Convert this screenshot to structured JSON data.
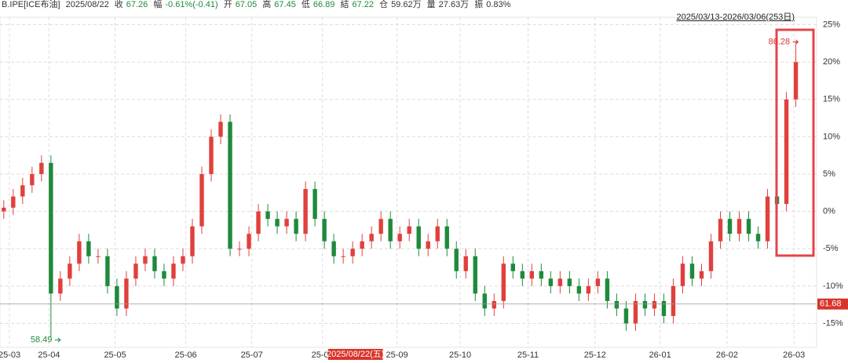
{
  "header": {
    "symbol": "B.IPE[ICE布油]",
    "date": "2025/08/22",
    "range": "2025/03/13-2026/03/06(253日)",
    "fields": [
      {
        "label": "收",
        "value": "67.26"
      },
      {
        "label": "幅",
        "value": "-0.61%(-0.41)"
      },
      {
        "label": "开",
        "value": "67.05"
      },
      {
        "label": "高",
        "value": "67.45"
      },
      {
        "label": "低",
        "value": "66.89"
      },
      {
        "label": "結",
        "value": "67.22"
      },
      {
        "label": "仓",
        "value": "59.62万"
      },
      {
        "label": "量",
        "value": "27.63万"
      },
      {
        "label": "振",
        "value": "0.83%"
      }
    ]
  },
  "chart_data": {
    "type": "candlestick",
    "up_color": "#e0403d",
    "down_color": "#1e8a3c",
    "grid": true,
    "open": [
      0,
      0.5,
      2,
      3.5,
      5,
      6.5,
      -11,
      -9,
      -7,
      -4,
      -6,
      -6,
      -10,
      -13,
      -9,
      -7,
      -6,
      -8,
      -9,
      -7,
      -6,
      -2,
      5,
      10,
      12,
      -5,
      -5,
      -3,
      0,
      -1,
      -2,
      -1,
      -3,
      3,
      -1,
      -4,
      -6,
      -6,
      -5,
      -4,
      -3,
      -1,
      -4,
      -3,
      -2,
      -5,
      -4,
      -2,
      -5,
      -8,
      -6,
      -11,
      -13,
      -12,
      -7,
      -8,
      -9,
      -8,
      -9,
      -10,
      -9,
      -10,
      -11,
      -10,
      -9,
      -12,
      -13,
      -15,
      -12,
      -13,
      -12,
      -14,
      -10,
      -7,
      -9,
      -8,
      -4,
      -1,
      -3,
      -1,
      -3,
      -4,
      2,
      1,
      15
    ],
    "high": [
      1.5,
      3,
      4.5,
      6,
      7.5,
      7.5,
      -8,
      -6,
      -3,
      -3,
      -5,
      -5,
      -9,
      -8,
      -6,
      -5,
      -5,
      -7,
      -6,
      -5,
      -1,
      6,
      11,
      13,
      13,
      -4,
      -2,
      1,
      1,
      0,
      0,
      0,
      4,
      4,
      0,
      -3,
      -5,
      -4,
      -3,
      -2,
      0,
      0,
      -2,
      -1,
      -1,
      -3,
      -1,
      -1,
      -4,
      -5,
      -5,
      -10,
      -11,
      -6,
      -6,
      -7,
      -7,
      -7,
      -8,
      -8,
      -8,
      -9,
      -9,
      -8,
      -8,
      -11,
      -12,
      -11,
      -11,
      -11,
      -11,
      -9,
      -6,
      -6,
      -7,
      -3,
      0,
      0,
      0,
      0,
      -2,
      3,
      3,
      16,
      22.7
    ],
    "low": [
      -1,
      -0.5,
      1,
      2.5,
      4,
      -16.9,
      -12,
      -10,
      -8,
      -7,
      -7,
      -11,
      -14,
      -14,
      -10,
      -8,
      -9,
      -10,
      -10,
      -8,
      -7,
      -3,
      4,
      9,
      -6,
      -6,
      -6,
      -4,
      -2,
      -3,
      -3,
      -4,
      -4,
      -2,
      -5,
      -7,
      -7,
      -7,
      -6,
      -5,
      -4,
      -5,
      -5,
      -4,
      -6,
      -6,
      -5,
      -6,
      -9,
      -9,
      -12,
      -14,
      -14,
      -13,
      -9,
      -10,
      -10,
      -10,
      -11,
      -11,
      -11,
      -12,
      -12,
      -11,
      -13,
      -14,
      -16,
      -16,
      -14,
      -14,
      -15,
      -15,
      -11,
      -10,
      -10,
      -9,
      -5,
      -4,
      -4,
      -4,
      -5,
      -5,
      0,
      0,
      14
    ],
    "close": [
      0.5,
      2,
      3.5,
      5,
      6.5,
      -11,
      -9,
      -7,
      -4,
      -6,
      -6,
      -10,
      -13,
      -9,
      -7,
      -6,
      -8,
      -9,
      -7,
      -6,
      -2,
      5,
      10,
      12,
      -5,
      -5,
      -3,
      0,
      -1,
      -2,
      -1,
      -3,
      3,
      -1,
      -4,
      -6,
      -6,
      -5,
      -4,
      -3,
      -1,
      -4,
      -3,
      -2,
      -5,
      -4,
      -2,
      -5,
      -8,
      -6,
      -11,
      -13,
      -12,
      -7,
      -8,
      -9,
      -8,
      -9,
      -10,
      -9,
      -10,
      -11,
      -10,
      -9,
      -12,
      -13,
      -15,
      -12,
      -13,
      -12,
      -14,
      -10,
      -7,
      -9,
      -8,
      -4,
      -1,
      -3,
      -1,
      -3,
      -4,
      2,
      1,
      15,
      20
    ],
    "xlim": [
      -0.4,
      86.2
    ],
    "ylim": [
      -18.2,
      26
    ],
    "xticks": [
      {
        "value": 0.6,
        "label": "25-03"
      },
      {
        "value": 4.8,
        "label": "25-04"
      },
      {
        "value": 11.8,
        "label": "25-05"
      },
      {
        "value": 19.3,
        "label": "25-06"
      },
      {
        "value": 26.3,
        "label": "25-07"
      },
      {
        "value": 33.8,
        "label": "25-08"
      },
      {
        "value": 41.7,
        "label": "25-09"
      },
      {
        "value": 48.4,
        "label": "25-10"
      },
      {
        "value": 55.6,
        "label": "25-11"
      },
      {
        "value": 62.7,
        "label": "25-12"
      },
      {
        "value": 69.6,
        "label": "26-01"
      },
      {
        "value": 76.7,
        "label": "26-02"
      },
      {
        "value": 83.8,
        "label": "26-03"
      }
    ],
    "yticks": [
      {
        "value": 25,
        "label": "25%"
      },
      {
        "value": 20,
        "label": "20%"
      },
      {
        "value": 15,
        "label": "15%"
      },
      {
        "value": 10,
        "label": "10%"
      },
      {
        "value": 5,
        "label": "5%"
      },
      {
        "value": 0,
        "label": "0%"
      },
      {
        "value": -5,
        "label": "-5%"
      },
      {
        "value": -10,
        "label": "-10%"
      },
      {
        "value": -15,
        "label": "-15%"
      }
    ],
    "crosshair": {
      "x": 37.3,
      "x_label": "2025/08/22(五)",
      "y": -12.4,
      "y_label": "61.68"
    },
    "annotations": [
      {
        "text": "86.28",
        "x": 84,
        "y": 22.7
      },
      {
        "text": "58.49",
        "x": 5,
        "y": -16.9
      }
    ]
  }
}
